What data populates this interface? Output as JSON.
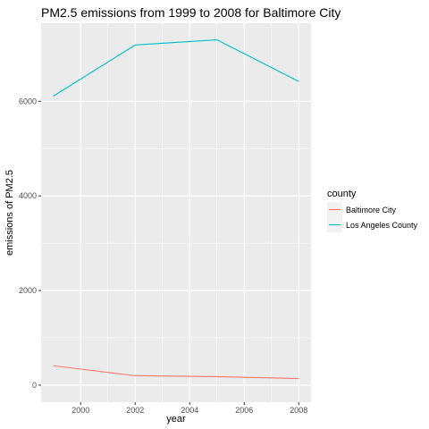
{
  "chart_data": {
    "type": "line",
    "title": "PM2.5 emissions from 1999 to 2008 for Baltimore City",
    "xlabel": "year",
    "ylabel": "emissions of PM2.5",
    "x": [
      1999,
      2002,
      2005,
      2008
    ],
    "xticks": [
      2000,
      2002,
      2004,
      2006,
      2008
    ],
    "yticks": [
      0,
      2000,
      4000,
      6000
    ],
    "xlim": [
      1998.55,
      2008.45
    ],
    "ylim": [
      -360,
      7650
    ],
    "grid": true,
    "legend": {
      "title": "county",
      "placement": "right"
    },
    "series": [
      {
        "name": "Baltimore City",
        "color": "#F8766D",
        "values": [
          410,
          200,
          180,
          140
        ]
      },
      {
        "name": "Los Angeles County",
        "color": "#00BFC4",
        "values": [
          6110,
          7190,
          7300,
          6420
        ]
      }
    ]
  },
  "colors": {
    "panel": "#EBEBEB",
    "grid_major": "#FFFFFF",
    "tick": "#333333"
  }
}
